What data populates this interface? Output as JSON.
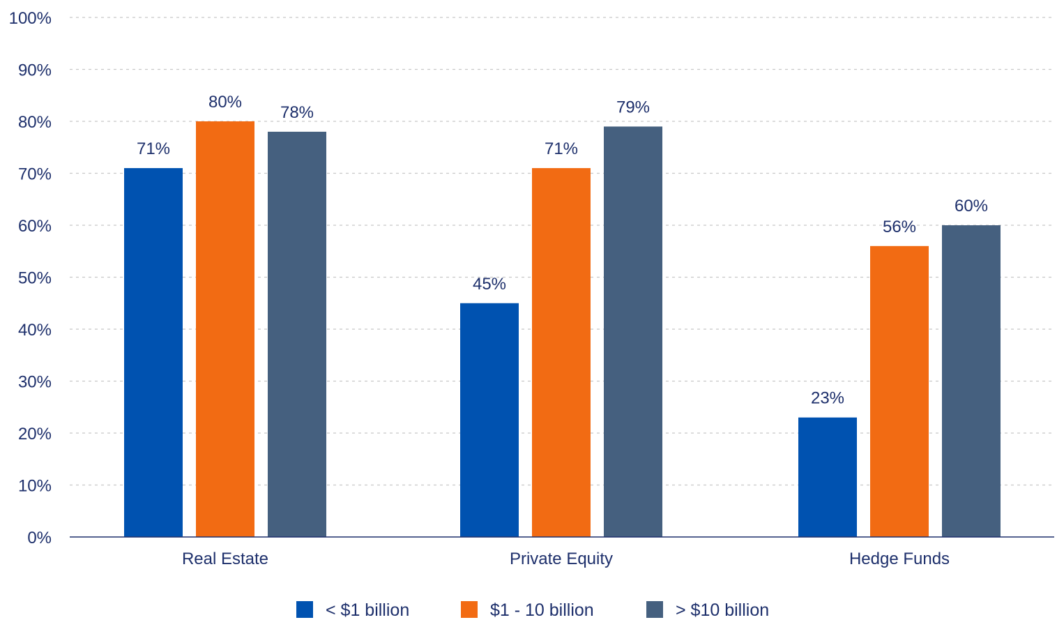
{
  "chart_data": {
    "type": "bar",
    "title": "",
    "xlabel": "",
    "ylabel": "",
    "categories": [
      "Real Estate",
      "Private Equity",
      "Hedge Funds"
    ],
    "series": [
      {
        "name": "< $1 billion",
        "color": "#0052b0",
        "values": [
          71,
          45,
          23
        ]
      },
      {
        "name": "$1 - 10 billion",
        "color": "#f26b13",
        "values": [
          80,
          71,
          56
        ]
      },
      {
        "name": "> $10 billion",
        "color": "#45607f",
        "values": [
          78,
          79,
          60
        ]
      }
    ],
    "value_suffix": "%",
    "ylim": [
      0,
      100
    ],
    "yticks": [
      "0%",
      "10%",
      "20%",
      "30%",
      "40%",
      "50%",
      "60%",
      "70%",
      "80%",
      "90%",
      "100%"
    ],
    "grid": true,
    "legend_position": "bottom-center"
  }
}
